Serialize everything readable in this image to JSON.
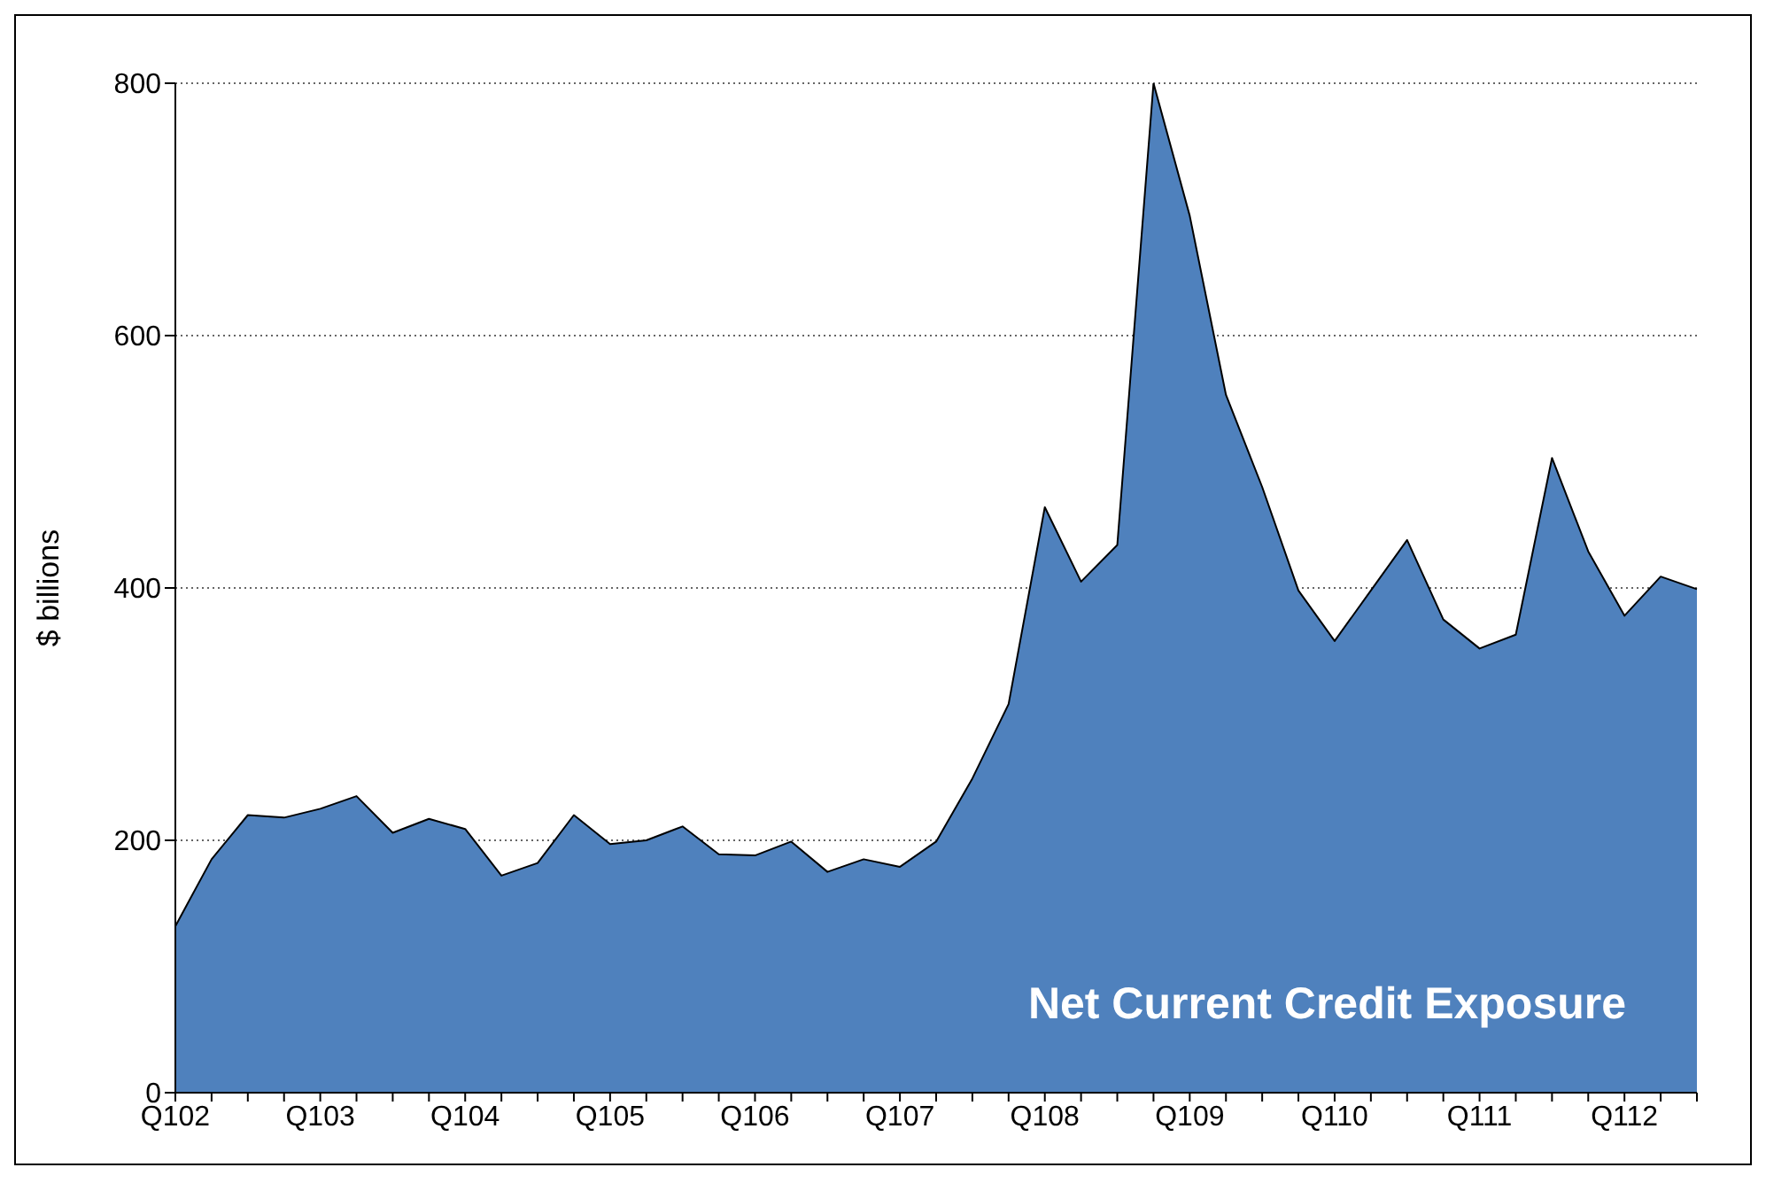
{
  "chart_data": {
    "type": "area",
    "ylabel": "$ billions",
    "annotations": [
      "Net Current Credit Exposure"
    ],
    "categories": [
      "Q102",
      null,
      null,
      null,
      "Q103",
      null,
      null,
      null,
      "Q104",
      null,
      null,
      null,
      "Q105",
      null,
      null,
      null,
      "Q106",
      null,
      null,
      null,
      "Q107",
      null,
      null,
      null,
      "Q108",
      null,
      null,
      null,
      "Q109",
      null,
      null,
      null,
      "Q110",
      null,
      null,
      null,
      "Q111",
      null,
      null,
      null,
      "Q112",
      null,
      null
    ],
    "series": [
      {
        "color": "#4f81bd",
        "values": [
          132,
          185,
          220,
          218,
          225,
          235,
          206,
          217,
          209,
          172,
          182,
          220,
          197,
          200,
          211,
          189,
          188,
          199,
          175,
          185,
          179,
          199,
          249,
          308,
          464,
          405,
          434,
          800,
          695,
          553,
          480,
          398,
          358,
          398,
          438,
          375,
          352,
          363,
          503,
          429,
          378,
          409,
          399
        ]
      }
    ],
    "ylim": [
      0,
      800
    ],
    "yticks": [
      0,
      200,
      400,
      600,
      800
    ],
    "grid": "y"
  }
}
